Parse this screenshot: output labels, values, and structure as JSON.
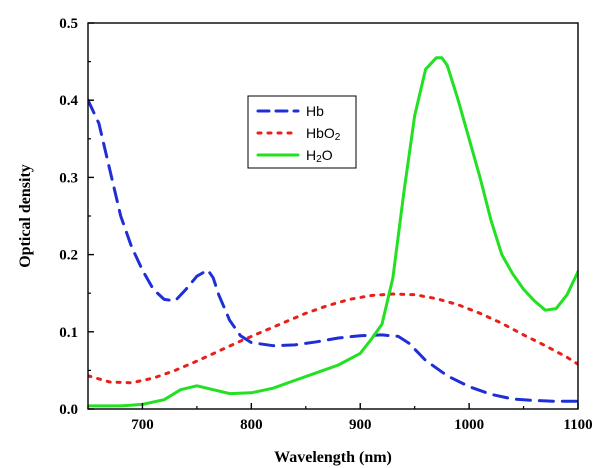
{
  "chart_data": {
    "type": "line",
    "xlabel": "Wavelength (nm)",
    "ylabel": "Optical density",
    "xlim": [
      650,
      1100
    ],
    "ylim": [
      0.0,
      0.5
    ],
    "x_ticks": [
      "700",
      "800",
      "900",
      "1000",
      "1100"
    ],
    "y_ticks": [
      "0.0",
      "0.1",
      "0.2",
      "0.3",
      "0.4",
      "0.5"
    ],
    "grid": false,
    "legend_position": "top-center",
    "series": [
      {
        "name": "Hb",
        "legend_parts": [
          "Hb"
        ],
        "color": "#1f2fd6",
        "style": "dashed",
        "x": [
          650,
          660,
          670,
          680,
          690,
          700,
          710,
          720,
          730,
          740,
          750,
          760,
          765,
          770,
          780,
          790,
          800,
          820,
          840,
          860,
          880,
          900,
          920,
          935,
          945,
          960,
          980,
          1000,
          1020,
          1040,
          1060,
          1080,
          1100
        ],
        "y": [
          0.4,
          0.37,
          0.31,
          0.25,
          0.21,
          0.18,
          0.155,
          0.142,
          0.14,
          0.155,
          0.172,
          0.18,
          0.17,
          0.148,
          0.115,
          0.095,
          0.086,
          0.082,
          0.083,
          0.087,
          0.092,
          0.095,
          0.096,
          0.094,
          0.085,
          0.063,
          0.043,
          0.029,
          0.019,
          0.013,
          0.011,
          0.01,
          0.01
        ]
      },
      {
        "name": "HbO2",
        "legend_parts": [
          "HbO",
          "2"
        ],
        "color": "#e8201a",
        "style": "dotted",
        "x": [
          650,
          670,
          690,
          710,
          730,
          750,
          770,
          790,
          810,
          830,
          850,
          870,
          890,
          910,
          930,
          950,
          970,
          990,
          1010,
          1030,
          1050,
          1070,
          1090,
          1100
        ],
        "y": [
          0.043,
          0.035,
          0.034,
          0.04,
          0.05,
          0.062,
          0.075,
          0.088,
          0.1,
          0.112,
          0.124,
          0.134,
          0.142,
          0.147,
          0.149,
          0.148,
          0.143,
          0.135,
          0.124,
          0.111,
          0.096,
          0.082,
          0.067,
          0.058
        ]
      },
      {
        "name": "H2O",
        "legend_parts": [
          "H",
          "2",
          "O"
        ],
        "color": "#22e022",
        "style": "solid",
        "x": [
          650,
          680,
          700,
          720,
          735,
          750,
          765,
          780,
          800,
          820,
          840,
          860,
          880,
          900,
          910,
          920,
          930,
          940,
          950,
          960,
          970,
          975,
          980,
          990,
          1000,
          1010,
          1020,
          1030,
          1040,
          1050,
          1060,
          1070,
          1080,
          1090,
          1100
        ],
        "y": [
          0.004,
          0.004,
          0.006,
          0.012,
          0.025,
          0.03,
          0.025,
          0.02,
          0.021,
          0.027,
          0.037,
          0.047,
          0.057,
          0.072,
          0.09,
          0.11,
          0.17,
          0.28,
          0.38,
          0.44,
          0.455,
          0.455,
          0.445,
          0.4,
          0.35,
          0.3,
          0.245,
          0.2,
          0.175,
          0.155,
          0.14,
          0.128,
          0.13,
          0.148,
          0.178
        ]
      }
    ]
  }
}
